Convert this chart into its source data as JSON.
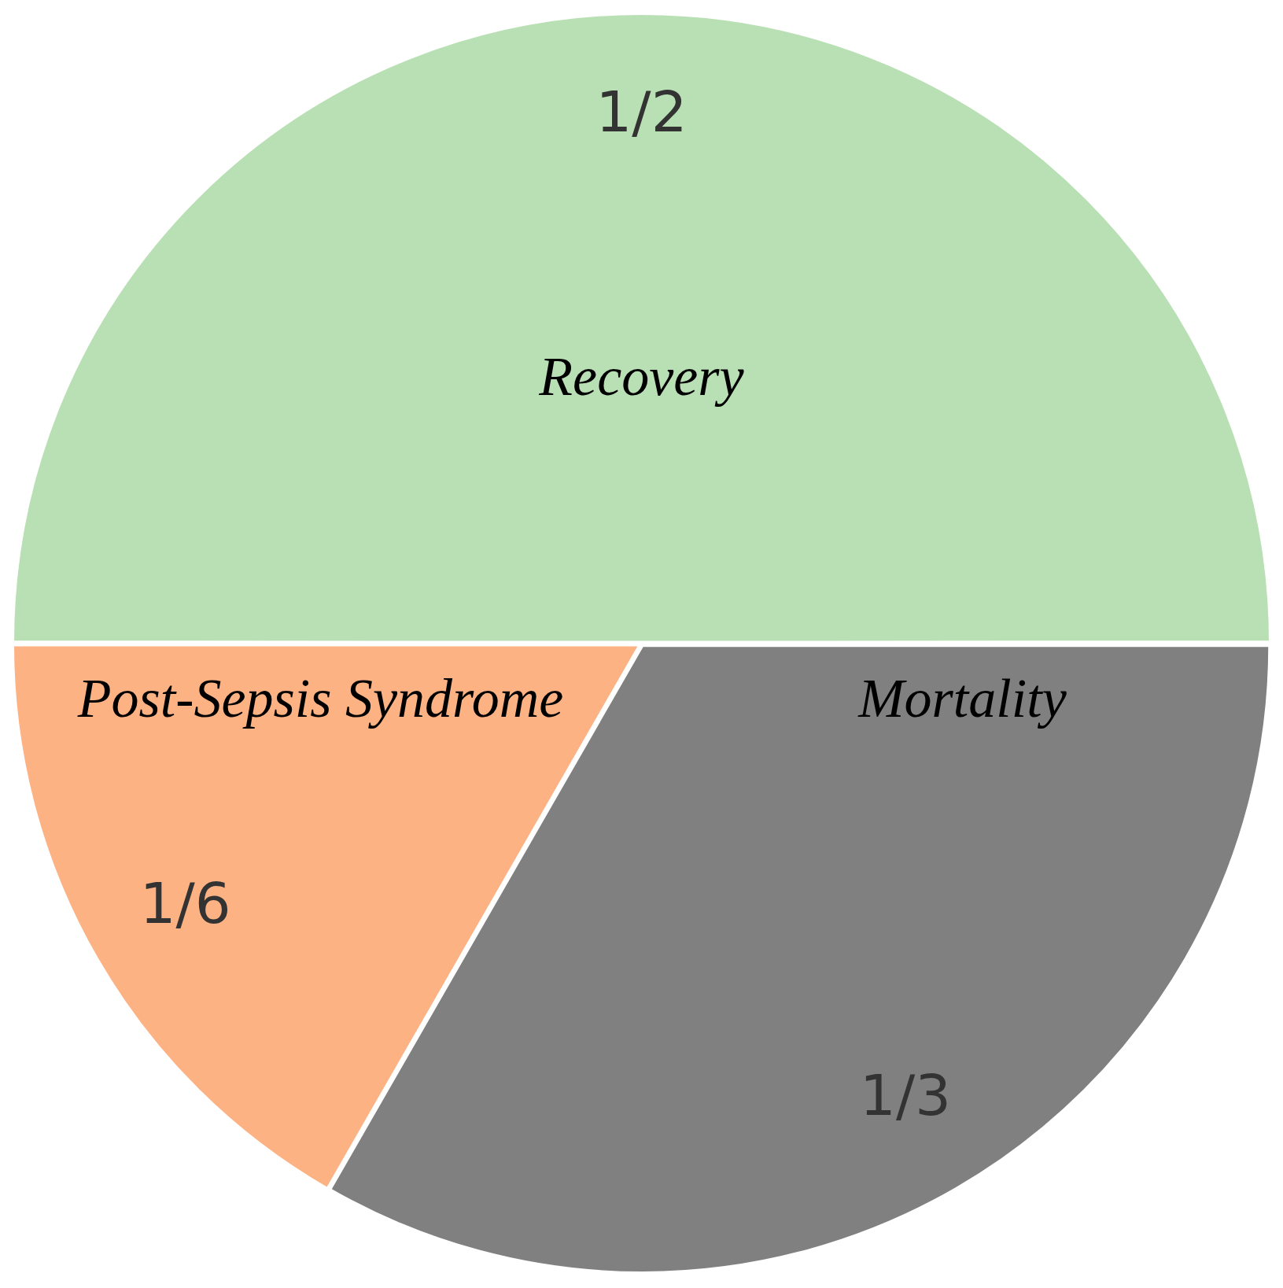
{
  "chart_data": {
    "type": "pie",
    "categories": [
      "Recovery",
      "Mortality",
      "Post-Sepsis Syndrome"
    ],
    "values": [
      0.5,
      0.333,
      0.167
    ],
    "colors": [
      "#b9e0b4",
      "#808080",
      "#fdb283"
    ],
    "value_labels": [
      "1/2",
      "1/3",
      "1/6"
    ]
  }
}
